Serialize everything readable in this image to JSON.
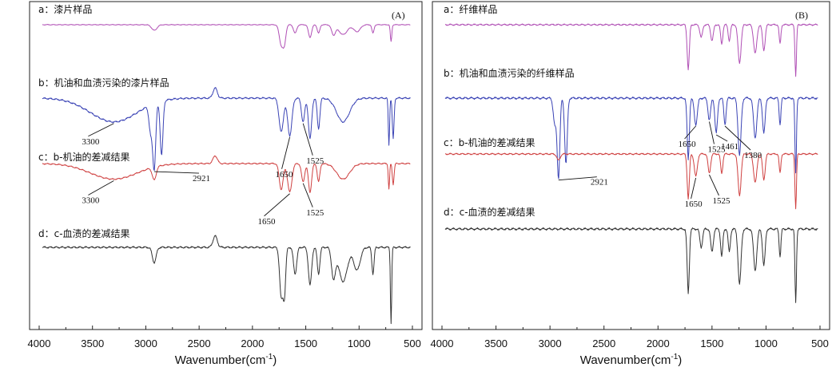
{
  "chart_data": [
    {
      "type": "line",
      "panel_label": "(A)",
      "xlabel": "Wavenumber(cm",
      "xlabel_sup": "-1",
      "xlabel_close": ")",
      "xlim": [
        4000,
        500
      ],
      "x_reversed": true,
      "x_ticks": [
        4000,
        3500,
        3000,
        2500,
        2000,
        1500,
        1000,
        500
      ],
      "x_tick_labels": [
        "4000",
        "3500",
        "3000",
        "2500",
        "2000",
        "1500",
        "1000",
        "500"
      ],
      "series": [
        {
          "label": "a：漆片样品",
          "color": "#b04fb5",
          "base": 0.0,
          "peaks": [
            [
              1730,
              0.7,
              18
            ],
            [
              1700,
              0.6,
              14
            ],
            [
              1600,
              0.3,
              15
            ],
            [
              1460,
              0.45,
              15
            ],
            [
              1380,
              0.3,
              12
            ],
            [
              1240,
              0.35,
              18
            ],
            [
              1150,
              0.35,
              40
            ],
            [
              1020,
              0.25,
              30
            ],
            [
              870,
              0.3,
              10
            ],
            [
              700,
              0.6,
              7
            ],
            [
              2920,
              0.2,
              25
            ]
          ]
        },
        {
          "label": "b：机油和血渍污染的漆片样品",
          "color": "#3a43b5",
          "base": 0.0,
          "peaks": [
            [
              3300,
              0.35,
              220
            ],
            [
              2955,
              0.4,
              15
            ],
            [
              2921,
              0.95,
              14
            ],
            [
              2852,
              0.8,
              13
            ],
            [
              2350,
              -0.15,
              20
            ],
            [
              1730,
              0.5,
              20
            ],
            [
              1650,
              0.55,
              20
            ],
            [
              1525,
              0.35,
              15
            ],
            [
              1460,
              0.6,
              15
            ],
            [
              1380,
              0.45,
              12
            ],
            [
              1150,
              0.35,
              60
            ],
            [
              720,
              0.7,
              6
            ],
            [
              680,
              0.6,
              8
            ]
          ]
        },
        {
          "label": "c：b-机油的差减结果",
          "color": "#cf4040",
          "base": 0.0,
          "peaks": [
            [
              3300,
              0.3,
              220
            ],
            [
              2921,
              0.25,
              18
            ],
            [
              2350,
              -0.15,
              20
            ],
            [
              1730,
              0.5,
              18
            ],
            [
              1650,
              0.55,
              20
            ],
            [
              1525,
              0.35,
              15
            ],
            [
              1460,
              0.55,
              15
            ],
            [
              1380,
              0.35,
              12
            ],
            [
              1150,
              0.3,
              60
            ],
            [
              720,
              0.5,
              6
            ],
            [
              680,
              0.4,
              8
            ]
          ]
        },
        {
          "label": "d：c-血渍的差减结果",
          "color": "#333333",
          "base": 0.0,
          "peaks": [
            [
              2921,
              0.2,
              18
            ],
            [
              2350,
              -0.15,
              20
            ],
            [
              1730,
              0.65,
              15
            ],
            [
              1700,
              0.6,
              12
            ],
            [
              1600,
              0.35,
              15
            ],
            [
              1460,
              0.5,
              15
            ],
            [
              1380,
              0.35,
              12
            ],
            [
              1240,
              0.4,
              18
            ],
            [
              1150,
              0.45,
              40
            ],
            [
              1020,
              0.3,
              30
            ],
            [
              870,
              0.35,
              10
            ],
            [
              700,
              1.0,
              6
            ]
          ]
        }
      ],
      "annotations": [
        {
          "text": "3300",
          "series": 1,
          "x": 3300
        },
        {
          "text": "2921",
          "series": 1,
          "x": 2921
        },
        {
          "text": "1650",
          "series": 1,
          "x": 1650
        },
        {
          "text": "1525",
          "series": 1,
          "x": 1525
        },
        {
          "text": "3300",
          "series": 2,
          "x": 3300
        },
        {
          "text": "1650",
          "series": 2,
          "x": 1650
        },
        {
          "text": "1525",
          "series": 2,
          "x": 1525
        }
      ]
    },
    {
      "type": "line",
      "panel_label": "(B)",
      "xlabel": "Wavenumber(cm",
      "xlabel_sup": "-1",
      "xlabel_close": ")",
      "xlim": [
        4000,
        500
      ],
      "x_reversed": true,
      "x_ticks": [
        4000,
        3500,
        3000,
        2500,
        2000,
        1500,
        1000,
        500
      ],
      "x_tick_labels": [
        "4000",
        "3500",
        "3000",
        "2500",
        "2000",
        "1500",
        "1000",
        "500"
      ],
      "series": [
        {
          "label": "a：纤维样品",
          "color": "#b04fb5",
          "base": 0.0,
          "peaks": [
            [
              1720,
              0.7,
              10
            ],
            [
              1600,
              0.2,
              12
            ],
            [
              1500,
              0.25,
              12
            ],
            [
              1410,
              0.3,
              10
            ],
            [
              1340,
              0.25,
              10
            ],
            [
              1245,
              0.6,
              14
            ],
            [
              1100,
              0.45,
              15
            ],
            [
              1020,
              0.4,
              12
            ],
            [
              870,
              0.3,
              8
            ],
            [
              725,
              0.8,
              7
            ]
          ]
        },
        {
          "label": "b：机油和血渍污染的纤维样品",
          "color": "#3a43b5",
          "base": 0.0,
          "peaks": [
            [
              2955,
              0.3,
              14
            ],
            [
              2921,
              0.9,
              12
            ],
            [
              2852,
              0.75,
              12
            ],
            [
              1720,
              0.7,
              10
            ],
            [
              1650,
              0.3,
              14
            ],
            [
              1525,
              0.25,
              12
            ],
            [
              1461,
              0.4,
              12
            ],
            [
              1380,
              0.3,
              10
            ],
            [
              1245,
              0.65,
              14
            ],
            [
              1100,
              0.45,
              15
            ],
            [
              1020,
              0.4,
              12
            ],
            [
              870,
              0.3,
              8
            ],
            [
              725,
              0.85,
              7
            ]
          ]
        },
        {
          "label": "c：b-机油的差减结果",
          "color": "#cf4040",
          "base": 0.0,
          "peaks": [
            [
              2921,
              0.1,
              15
            ],
            [
              1720,
              0.7,
              10
            ],
            [
              1650,
              0.35,
              14
            ],
            [
              1525,
              0.3,
              12
            ],
            [
              1410,
              0.3,
              10
            ],
            [
              1245,
              0.65,
              14
            ],
            [
              1100,
              0.45,
              15
            ],
            [
              1020,
              0.4,
              12
            ],
            [
              870,
              0.3,
              8
            ],
            [
              725,
              0.85,
              7
            ]
          ]
        },
        {
          "label": "d：c-血渍的差减结果",
          "color": "#333333",
          "base": 0.0,
          "peaks": [
            [
              1720,
              0.7,
              10
            ],
            [
              1600,
              0.2,
              12
            ],
            [
              1500,
              0.25,
              12
            ],
            [
              1410,
              0.3,
              10
            ],
            [
              1340,
              0.25,
              10
            ],
            [
              1245,
              0.6,
              14
            ],
            [
              1100,
              0.45,
              15
            ],
            [
              1020,
              0.4,
              12
            ],
            [
              870,
              0.3,
              8
            ],
            [
              725,
              0.8,
              7
            ]
          ]
        }
      ],
      "annotations": [
        {
          "text": "2921",
          "series": 1,
          "x": 2921
        },
        {
          "text": "1650",
          "series": 1,
          "x": 1650
        },
        {
          "text": "1525",
          "series": 1,
          "x": 1525
        },
        {
          "text": "1461",
          "series": 1,
          "x": 1461
        },
        {
          "text": "1380",
          "series": 1,
          "x": 1380
        },
        {
          "text": "1650",
          "series": 2,
          "x": 1650
        },
        {
          "text": "1525",
          "series": 2,
          "x": 1525
        }
      ]
    }
  ]
}
